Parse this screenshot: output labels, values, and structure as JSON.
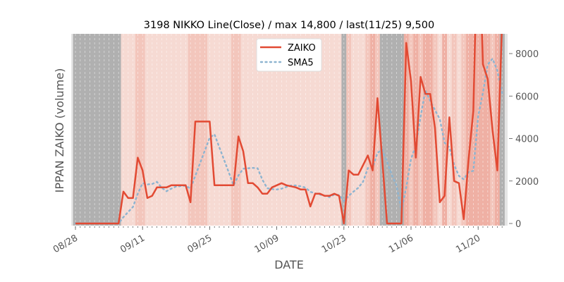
{
  "chart_data": {
    "type": "line",
    "title": "3198 NIKKO Line(Close) / max 14,800 / last(11/25) 9,500",
    "xlabel": "DATE",
    "ylabel": "IPPAN ZAIKO (volume)",
    "ylim": [
      -100,
      8930
    ],
    "yticks": [
      0,
      2000,
      4000,
      6000,
      8000
    ],
    "xtick_labels": [
      "08/28",
      "09/11",
      "09/25",
      "10/09",
      "10/23",
      "11/06",
      "11/20"
    ],
    "xtick_day_index": [
      0,
      14,
      28,
      42,
      56,
      70,
      84
    ],
    "legend": {
      "placement": "top-center",
      "entries": [
        "ZAIKO",
        "SMA5"
      ]
    },
    "grid": true,
    "colors": {
      "zaiko": "#e24a33",
      "sma": "#8eb4d0",
      "gray_band": "#b0b0b0",
      "band_light": "#f6dad3",
      "band_mid": "#f3c6bc",
      "band_dark": "#efb0a4",
      "axes_bg": "#e5e5e5"
    },
    "series": [
      {
        "name": "ZAIKO",
        "values": [
          0,
          0,
          0,
          0,
          0,
          0,
          0,
          0,
          0,
          0,
          1500,
          1200,
          1200,
          3100,
          2500,
          1200,
          1300,
          1700,
          1700,
          1700,
          1800,
          1800,
          1800,
          1800,
          1000,
          4800,
          4800,
          4800,
          4800,
          1800,
          1800,
          1800,
          1800,
          1800,
          4100,
          3400,
          1900,
          1900,
          1700,
          1400,
          1400,
          1700,
          1800,
          1900,
          1800,
          1750,
          1700,
          1600,
          1600,
          800,
          1400,
          1400,
          1300,
          1300,
          1400,
          1300,
          0,
          2500,
          2300,
          2300,
          2750,
          3200,
          2500,
          5900,
          3000,
          0,
          0,
          0,
          0,
          8500,
          6700,
          3100,
          6900,
          6100,
          6100,
          4500,
          1000,
          1300,
          5000,
          2000,
          1900,
          200,
          3000,
          5300,
          14800,
          7500,
          6800,
          4400,
          2500,
          9500
        ]
      },
      {
        "name": "SMA5",
        "window": 5
      }
    ],
    "day_band_levels": [
      0,
      0,
      0,
      0,
      0,
      0,
      0,
      0,
      0,
      0,
      1,
      1,
      1,
      2,
      2,
      1,
      1,
      1,
      1,
      1,
      1,
      1,
      1,
      1,
      2,
      2,
      2,
      2,
      1,
      1,
      1,
      1,
      1,
      2,
      2,
      1,
      1,
      1,
      1,
      1,
      1,
      1,
      1,
      1,
      1,
      1,
      1,
      1,
      1,
      1,
      1,
      1,
      1,
      1,
      1,
      1,
      0,
      2,
      1,
      1,
      1,
      2,
      3,
      2,
      0,
      0,
      0,
      0,
      0,
      3,
      2,
      3,
      2,
      3,
      3,
      2,
      1,
      3,
      1,
      2,
      1,
      2,
      3,
      3,
      3,
      3,
      3,
      2,
      3,
      0
    ]
  }
}
